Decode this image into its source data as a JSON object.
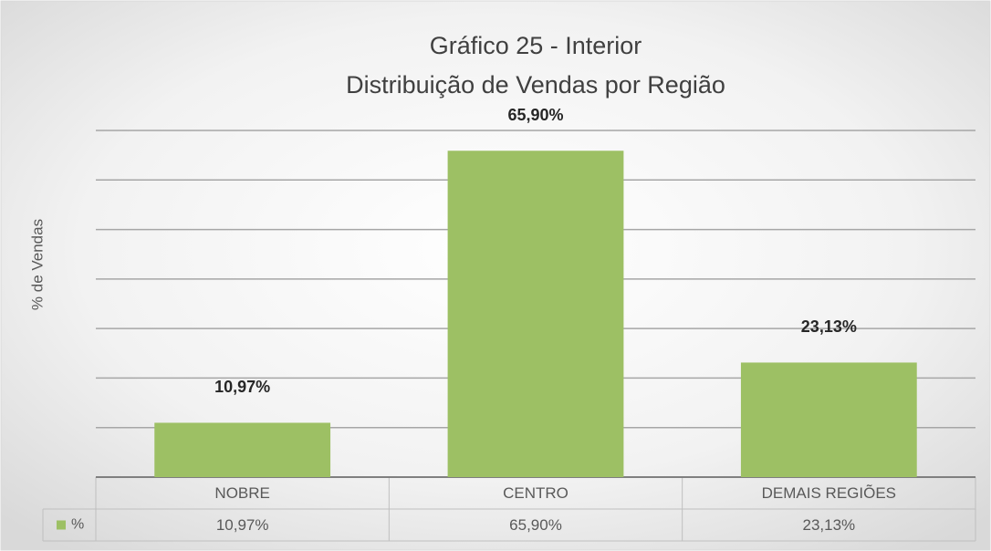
{
  "chart_data": {
    "type": "bar",
    "title": "Gráfico 25 - Interior",
    "subtitle": "Distribuição de Vendas por Região",
    "y_label": "% de Vendas",
    "categories": [
      "NOBRE",
      "CENTRO",
      "DEMAIS REGIÕES"
    ],
    "series": [
      {
        "name": "%",
        "color": "#9dc064",
        "values": [
          10.97,
          65.9,
          23.13
        ],
        "value_labels": [
          "10,97%",
          "65,90%",
          "23,13%"
        ]
      }
    ],
    "ylim": [
      0,
      70
    ],
    "yticks": [
      0,
      10,
      20,
      30,
      40,
      50,
      60,
      70
    ],
    "grid": true
  }
}
